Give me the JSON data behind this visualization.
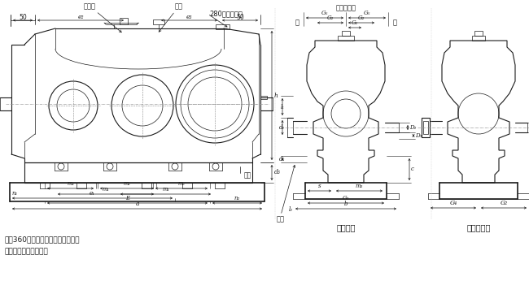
{
  "bg_color": "#ffffff",
  "line_color": "#1a1a1a",
  "figsize": [
    6.5,
    3.46
  ],
  "dpi": 100,
  "labels": {
    "ventilation_cap": "通气帽",
    "oil_gauge": "油尺",
    "oil_plug": "油塞",
    "lifting_lug": "280以上起吊耳",
    "end_cover": "所需的端盖",
    "fan": "风扇",
    "flat_key": "平键联接",
    "lock_disc": "锁紧盘联接",
    "left": "左",
    "right": "右",
    "note1": "规格360以上，底座上带起缝螺栓，",
    "note2": "下箱体前端面为找正面"
  }
}
